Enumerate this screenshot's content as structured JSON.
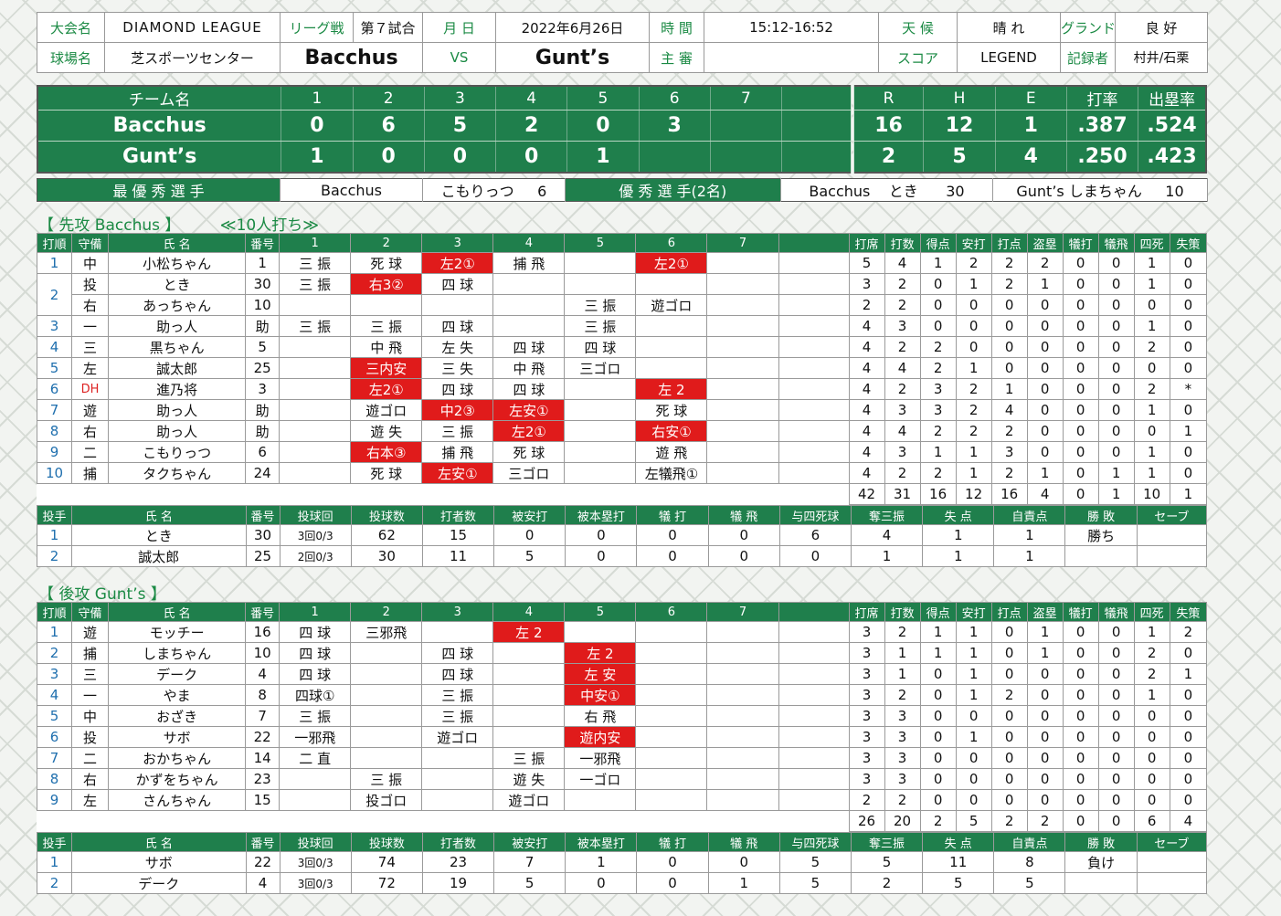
{
  "header": {
    "tournament_label": "大会名",
    "tournament": "DIAMOND LEAGUE",
    "series_label": "リーグ戦",
    "game_no": "第７試合",
    "date_label": "月 日",
    "date": "2022年6月26日",
    "time_label": "時 間",
    "time": "15:12-16:52",
    "weather_label": "天 候",
    "weather": "晴 れ",
    "ground_label": "グランド",
    "ground": "良 好",
    "venue_label": "球場名",
    "venue": "芝スポーツセンター",
    "team1": "Bacchus",
    "vs": "VS",
    "team2": "Gunt’s",
    "umpire_label": "主 審",
    "umpire": "",
    "scorer_label": "スコア",
    "scorer": "LEGEND",
    "recorder_label": "記録者",
    "recorder": "村井/石栗"
  },
  "score": {
    "headers": [
      "チーム名",
      "1",
      "2",
      "3",
      "4",
      "5",
      "6",
      "7",
      "",
      "R",
      "H",
      "E",
      "打率",
      "出塁率"
    ],
    "rows": [
      {
        "team": "Bacchus",
        "innings": [
          "0",
          "6",
          "5",
          "2",
          "0",
          "3",
          "",
          ""
        ],
        "R": "16",
        "H": "12",
        "E": "1",
        "avg": ".387",
        "obp": ".524"
      },
      {
        "team": "Gunt’s",
        "innings": [
          "1",
          "0",
          "0",
          "0",
          "1",
          "",
          "",
          ""
        ],
        "R": "2",
        "H": "5",
        "E": "4",
        "avg": ".250",
        "obp": ".423"
      }
    ]
  },
  "mvp": {
    "label": "最 優 秀 選 手",
    "team": "Bacchus",
    "name": "こもりっつ",
    "num": "6",
    "excellent_label": "優 秀 選 手(2名)",
    "p1_team": "Bacchus",
    "p1_name": "とき",
    "p1_num": "30",
    "p2_team": "Gunt’s",
    "p2_name": "しまちゃん",
    "p2_num": "10"
  },
  "bacchus": {
    "title": "【 先攻 Bacchus 】",
    "note": "≪10人打ち≫",
    "headers": [
      "打順",
      "守備",
      "氏 名",
      "番号",
      "1",
      "2",
      "3",
      "4",
      "5",
      "6",
      "7",
      "",
      "打席",
      "打数",
      "得点",
      "安打",
      "打点",
      "盗塁",
      "犠打",
      "犠飛",
      "四死",
      "失策"
    ],
    "rows": [
      {
        "o": "1",
        "p": "中",
        "n": "小松ちゃん",
        "no": "1",
        "ab": [
          "三 振",
          "死 球",
          "左2①",
          "捕 飛",
          "",
          "左2①",
          ""
        ],
        "red": [
          2,
          5
        ],
        "s": [
          "5",
          "4",
          "1",
          "2",
          "2",
          "2",
          "0",
          "0",
          "1",
          "0"
        ]
      },
      {
        "o": "2",
        "p": "投",
        "n": "とき",
        "no": "30",
        "ab": [
          "三 振",
          "右3②",
          "四 球",
          "",
          "",
          "",
          ""
        ],
        "red": [
          1
        ],
        "s": [
          "3",
          "2",
          "0",
          "1",
          "2",
          "1",
          "0",
          "0",
          "1",
          "0"
        ]
      },
      {
        "o": "",
        "p": "右",
        "n": "あっちゃん",
        "no": "10",
        "ab": [
          "",
          "",
          "",
          "",
          "三 振",
          "遊ゴロ",
          ""
        ],
        "red": [],
        "s": [
          "2",
          "2",
          "0",
          "0",
          "0",
          "0",
          "0",
          "0",
          "0",
          "0"
        ]
      },
      {
        "o": "3",
        "p": "一",
        "n": "助っ人",
        "no": "助",
        "ab": [
          "三 振",
          "三 振",
          "四 球",
          "",
          "三 振",
          "",
          ""
        ],
        "red": [],
        "s": [
          "4",
          "3",
          "0",
          "0",
          "0",
          "0",
          "0",
          "0",
          "1",
          "0"
        ]
      },
      {
        "o": "4",
        "p": "三",
        "n": "黒ちゃん",
        "no": "5",
        "ab": [
          "",
          "中 飛",
          "左 失",
          "四 球",
          "四 球",
          "",
          ""
        ],
        "red": [],
        "s": [
          "4",
          "2",
          "2",
          "0",
          "0",
          "0",
          "0",
          "0",
          "2",
          "0"
        ]
      },
      {
        "o": "5",
        "p": "左",
        "n": "誠太郎",
        "no": "25",
        "ab": [
          "",
          "三内安",
          "三 失",
          "中 飛",
          "三ゴロ",
          "",
          ""
        ],
        "red": [
          1
        ],
        "s": [
          "4",
          "4",
          "2",
          "1",
          "0",
          "0",
          "0",
          "0",
          "0",
          "0"
        ]
      },
      {
        "o": "6",
        "p": "DH",
        "n": "進乃将",
        "no": "3",
        "ab": [
          "",
          "左2①",
          "四 球",
          "四 球",
          "",
          "左 2",
          ""
        ],
        "red": [
          1,
          5
        ],
        "s": [
          "4",
          "2",
          "3",
          "2",
          "1",
          "0",
          "0",
          "0",
          "2",
          "*"
        ]
      },
      {
        "o": "7",
        "p": "遊",
        "n": "助っ人",
        "no": "助",
        "ab": [
          "",
          "遊ゴロ",
          "中2③",
          "左安①",
          "",
          "死 球",
          ""
        ],
        "red": [
          2,
          3
        ],
        "s": [
          "4",
          "3",
          "3",
          "2",
          "4",
          "0",
          "0",
          "0",
          "1",
          "0"
        ]
      },
      {
        "o": "8",
        "p": "右",
        "n": "助っ人",
        "no": "助",
        "ab": [
          "",
          "遊 失",
          "三 振",
          "左2①",
          "",
          "右安①",
          ""
        ],
        "red": [
          3,
          5
        ],
        "s": [
          "4",
          "4",
          "2",
          "2",
          "2",
          "0",
          "0",
          "0",
          "0",
          "1"
        ]
      },
      {
        "o": "9",
        "p": "二",
        "n": "こもりっつ",
        "no": "6",
        "ab": [
          "",
          "右本③",
          "捕 飛",
          "死 球",
          "",
          "遊 飛",
          ""
        ],
        "red": [
          1
        ],
        "s": [
          "4",
          "3",
          "1",
          "1",
          "3",
          "0",
          "0",
          "0",
          "1",
          "0"
        ]
      },
      {
        "o": "10",
        "p": "捕",
        "n": "タクちゃん",
        "no": "24",
        "ab": [
          "",
          "死 球",
          "左安①",
          "三ゴロ",
          "",
          "左犠飛①",
          ""
        ],
        "red": [
          2
        ],
        "s": [
          "4",
          "2",
          "2",
          "1",
          "2",
          "1",
          "0",
          "1",
          "1",
          "0"
        ]
      }
    ],
    "totals": [
      "42",
      "31",
      "16",
      "12",
      "16",
      "4",
      "0",
      "1",
      "10",
      "1"
    ],
    "pitch_headers": [
      "投手",
      "氏 名",
      "番号",
      "投球回",
      "投球数",
      "打者数",
      "被安打",
      "被本塁打",
      "犠 打",
      "犠 飛",
      "与四死球",
      "奪三振",
      "失 点",
      "自責点",
      "勝 敗",
      "セーブ"
    ],
    "pitchers": [
      {
        "o": "1",
        "n": "とき",
        "no": "30",
        "ip": "3回0/3",
        "v": [
          "62",
          "15",
          "0",
          "0",
          "0",
          "0",
          "6",
          "4",
          "1",
          "1",
          "勝ち",
          ""
        ]
      },
      {
        "o": "2",
        "n": "誠太郎",
        "no": "25",
        "ip": "2回0/3",
        "v": [
          "30",
          "11",
          "5",
          "0",
          "0",
          "0",
          "0",
          "1",
          "1",
          "1",
          "",
          ""
        ]
      }
    ]
  },
  "gunts": {
    "title": "【 後攻 Gunt’s 】",
    "rows": [
      {
        "o": "1",
        "p": "遊",
        "n": "モッチー",
        "no": "16",
        "ab": [
          "四 球",
          "三邪飛",
          "",
          "左 2",
          "",
          "",
          ""
        ],
        "red": [
          3
        ],
        "s": [
          "3",
          "2",
          "1",
          "1",
          "0",
          "1",
          "0",
          "0",
          "1",
          "2"
        ]
      },
      {
        "o": "2",
        "p": "捕",
        "n": "しまちゃん",
        "no": "10",
        "ab": [
          "四 球",
          "",
          "四 球",
          "",
          "左 2",
          "",
          ""
        ],
        "red": [
          4
        ],
        "s": [
          "3",
          "1",
          "1",
          "1",
          "0",
          "1",
          "0",
          "0",
          "2",
          "0"
        ]
      },
      {
        "o": "3",
        "p": "三",
        "n": "デーク",
        "no": "4",
        "ab": [
          "四 球",
          "",
          "四 球",
          "",
          "左 安",
          "",
          ""
        ],
        "red": [
          4
        ],
        "s": [
          "3",
          "1",
          "0",
          "1",
          "0",
          "0",
          "0",
          "0",
          "2",
          "1"
        ]
      },
      {
        "o": "4",
        "p": "一",
        "n": "やま",
        "no": "8",
        "ab": [
          "四球①",
          "",
          "三 振",
          "",
          "中安①",
          "",
          ""
        ],
        "red": [
          4
        ],
        "s": [
          "3",
          "2",
          "0",
          "1",
          "2",
          "0",
          "0",
          "0",
          "1",
          "0"
        ]
      },
      {
        "o": "5",
        "p": "中",
        "n": "おざき",
        "no": "7",
        "ab": [
          "三 振",
          "",
          "三 振",
          "",
          "右 飛",
          "",
          ""
        ],
        "red": [],
        "s": [
          "3",
          "3",
          "0",
          "0",
          "0",
          "0",
          "0",
          "0",
          "0",
          "0"
        ]
      },
      {
        "o": "6",
        "p": "投",
        "n": "サボ",
        "no": "22",
        "ab": [
          "一邪飛",
          "",
          "遊ゴロ",
          "",
          "遊内安",
          "",
          ""
        ],
        "red": [
          4
        ],
        "s": [
          "3",
          "3",
          "0",
          "1",
          "0",
          "0",
          "0",
          "0",
          "0",
          "0"
        ]
      },
      {
        "o": "7",
        "p": "二",
        "n": "おかちゃん",
        "no": "14",
        "ab": [
          "二 直",
          "",
          "",
          "三 振",
          "一邪飛",
          "",
          ""
        ],
        "red": [],
        "s": [
          "3",
          "3",
          "0",
          "0",
          "0",
          "0",
          "0",
          "0",
          "0",
          "0"
        ]
      },
      {
        "o": "8",
        "p": "右",
        "n": "かずをちゃん",
        "no": "23",
        "ab": [
          "",
          "三 振",
          "",
          "遊 失",
          "一ゴロ",
          "",
          ""
        ],
        "red": [],
        "s": [
          "3",
          "3",
          "0",
          "0",
          "0",
          "0",
          "0",
          "0",
          "0",
          "0"
        ]
      },
      {
        "o": "9",
        "p": "左",
        "n": "さんちゃん",
        "no": "15",
        "ab": [
          "",
          "投ゴロ",
          "",
          "遊ゴロ",
          "",
          "",
          ""
        ],
        "red": [],
        "s": [
          "2",
          "2",
          "0",
          "0",
          "0",
          "0",
          "0",
          "0",
          "0",
          "0"
        ]
      }
    ],
    "totals": [
      "26",
      "20",
      "2",
      "5",
      "2",
      "2",
      "0",
      "0",
      "6",
      "4"
    ],
    "pitchers": [
      {
        "o": "1",
        "n": "サボ",
        "no": "22",
        "ip": "3回0/3",
        "v": [
          "74",
          "23",
          "7",
          "1",
          "0",
          "0",
          "5",
          "5",
          "11",
          "8",
          "負け",
          ""
        ]
      },
      {
        "o": "2",
        "n": "デーク",
        "no": "4",
        "ip": "3回0/3",
        "v": [
          "72",
          "19",
          "5",
          "0",
          "0",
          "1",
          "5",
          "2",
          "5",
          "5",
          "",
          ""
        ]
      }
    ]
  }
}
